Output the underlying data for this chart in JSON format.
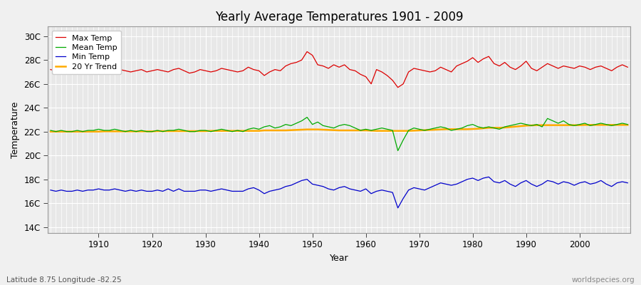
{
  "title": "Yearly Average Temperatures 1901 - 2009",
  "xlabel": "Year",
  "ylabel": "Temperature",
  "footnote_left": "Latitude 8.75 Longitude -82.25",
  "footnote_right": "worldspecies.org",
  "year_start": 1901,
  "year_end": 2009,
  "yticks": [
    14,
    16,
    18,
    20,
    22,
    24,
    26,
    28,
    30
  ],
  "ytick_labels": [
    "14C",
    "16C",
    "18C",
    "20C",
    "22C",
    "24C",
    "26C",
    "28C",
    "30C"
  ],
  "ylim": [
    13.5,
    30.8
  ],
  "xlim": [
    1900.5,
    2009.5
  ],
  "fig_color": "#f0f0f0",
  "plot_bg_color": "#e8e8e8",
  "grid_color": "#ffffff",
  "max_temp_color": "#dd0000",
  "mean_temp_color": "#00aa00",
  "min_temp_color": "#0000cc",
  "trend_color": "#ffaa00",
  "legend_labels": [
    "Max Temp",
    "Mean Temp",
    "Min Temp",
    "20 Yr Trend"
  ],
  "max_temp": [
    27.2,
    27.1,
    27.0,
    27.1,
    27.0,
    27.2,
    27.1,
    27.0,
    27.2,
    27.3,
    27.2,
    27.1,
    27.3,
    27.2,
    27.1,
    27.0,
    27.1,
    27.2,
    27.0,
    27.1,
    27.2,
    27.1,
    27.0,
    27.2,
    27.3,
    27.1,
    26.9,
    27.0,
    27.2,
    27.1,
    27.0,
    27.1,
    27.3,
    27.2,
    27.1,
    27.0,
    27.1,
    27.4,
    27.2,
    27.1,
    26.7,
    27.0,
    27.2,
    27.1,
    27.5,
    27.7,
    27.8,
    28.0,
    28.7,
    28.4,
    27.6,
    27.5,
    27.3,
    27.6,
    27.4,
    27.6,
    27.2,
    27.1,
    26.8,
    26.6,
    26.0,
    27.2,
    27.0,
    26.7,
    26.3,
    25.7,
    26.0,
    27.0,
    27.3,
    27.2,
    27.1,
    27.0,
    27.1,
    27.4,
    27.2,
    27.0,
    27.5,
    27.7,
    27.9,
    28.2,
    27.8,
    28.1,
    28.3,
    27.7,
    27.5,
    27.8,
    27.4,
    27.2,
    27.5,
    27.9,
    27.3,
    27.1,
    27.4,
    27.7,
    27.5,
    27.3,
    27.5,
    27.4,
    27.3,
    27.5,
    27.4,
    27.2,
    27.4,
    27.5,
    27.3,
    27.1,
    27.4,
    27.6,
    27.4
  ],
  "mean_temp": [
    22.1,
    22.0,
    22.1,
    22.0,
    22.0,
    22.1,
    22.0,
    22.1,
    22.1,
    22.2,
    22.1,
    22.1,
    22.2,
    22.1,
    22.0,
    22.1,
    22.0,
    22.1,
    22.0,
    22.0,
    22.1,
    22.0,
    22.1,
    22.1,
    22.2,
    22.1,
    22.0,
    22.0,
    22.1,
    22.1,
    22.0,
    22.1,
    22.2,
    22.1,
    22.0,
    22.1,
    22.0,
    22.2,
    22.3,
    22.2,
    22.4,
    22.5,
    22.3,
    22.4,
    22.6,
    22.5,
    22.7,
    22.9,
    23.2,
    22.6,
    22.8,
    22.5,
    22.4,
    22.3,
    22.5,
    22.6,
    22.5,
    22.3,
    22.1,
    22.2,
    22.1,
    22.2,
    22.3,
    22.2,
    22.1,
    20.4,
    21.3,
    22.1,
    22.3,
    22.2,
    22.1,
    22.2,
    22.3,
    22.4,
    22.3,
    22.1,
    22.2,
    22.3,
    22.5,
    22.6,
    22.4,
    22.3,
    22.4,
    22.3,
    22.2,
    22.4,
    22.5,
    22.6,
    22.7,
    22.6,
    22.5,
    22.6,
    22.4,
    23.1,
    22.9,
    22.7,
    22.9,
    22.6,
    22.5,
    22.6,
    22.7,
    22.5,
    22.6,
    22.7,
    22.6,
    22.5,
    22.6,
    22.7,
    22.6
  ],
  "min_temp": [
    17.1,
    17.0,
    17.1,
    17.0,
    17.0,
    17.1,
    17.0,
    17.1,
    17.1,
    17.2,
    17.1,
    17.1,
    17.2,
    17.1,
    17.0,
    17.1,
    17.0,
    17.1,
    17.0,
    17.0,
    17.1,
    17.0,
    17.2,
    17.0,
    17.2,
    17.0,
    17.0,
    17.0,
    17.1,
    17.1,
    17.0,
    17.1,
    17.2,
    17.1,
    17.0,
    17.0,
    17.0,
    17.2,
    17.3,
    17.1,
    16.8,
    17.0,
    17.1,
    17.2,
    17.4,
    17.5,
    17.7,
    17.9,
    18.0,
    17.6,
    17.5,
    17.4,
    17.2,
    17.1,
    17.3,
    17.4,
    17.2,
    17.1,
    17.0,
    17.2,
    16.8,
    17.0,
    17.1,
    17.0,
    16.9,
    15.6,
    16.4,
    17.1,
    17.3,
    17.2,
    17.1,
    17.3,
    17.5,
    17.7,
    17.6,
    17.5,
    17.6,
    17.8,
    18.0,
    18.1,
    17.9,
    18.1,
    18.2,
    17.8,
    17.7,
    17.9,
    17.6,
    17.4,
    17.7,
    17.9,
    17.6,
    17.4,
    17.6,
    17.9,
    17.8,
    17.6,
    17.8,
    17.7,
    17.5,
    17.7,
    17.8,
    17.6,
    17.7,
    17.9,
    17.6,
    17.4,
    17.7,
    17.8,
    17.7
  ],
  "trend": [
    22.0,
    22.0,
    22.0,
    22.0,
    22.0,
    22.0,
    22.0,
    22.0,
    22.0,
    22.0,
    22.02,
    22.02,
    22.02,
    22.02,
    22.02,
    22.02,
    22.02,
    22.02,
    22.02,
    22.02,
    22.04,
    22.04,
    22.04,
    22.04,
    22.04,
    22.04,
    22.04,
    22.04,
    22.04,
    22.04,
    22.06,
    22.06,
    22.06,
    22.06,
    22.06,
    22.06,
    22.06,
    22.06,
    22.06,
    22.06,
    22.1,
    22.1,
    22.1,
    22.1,
    22.1,
    22.12,
    22.14,
    22.16,
    22.18,
    22.18,
    22.18,
    22.16,
    22.14,
    22.12,
    22.1,
    22.1,
    22.1,
    22.1,
    22.1,
    22.1,
    22.08,
    22.06,
    22.06,
    22.06,
    22.06,
    22.06,
    22.06,
    22.06,
    22.08,
    22.1,
    22.12,
    22.14,
    22.16,
    22.18,
    22.2,
    22.2,
    22.2,
    22.2,
    22.2,
    22.22,
    22.24,
    22.28,
    22.32,
    22.32,
    22.32,
    22.34,
    22.38,
    22.42,
    22.46,
    22.5,
    22.52,
    22.54,
    22.54,
    22.54,
    22.54,
    22.54,
    22.54,
    22.54,
    22.54,
    22.54,
    22.56,
    22.56,
    22.56,
    22.56,
    22.56,
    22.56,
    22.56,
    22.56,
    22.56
  ]
}
